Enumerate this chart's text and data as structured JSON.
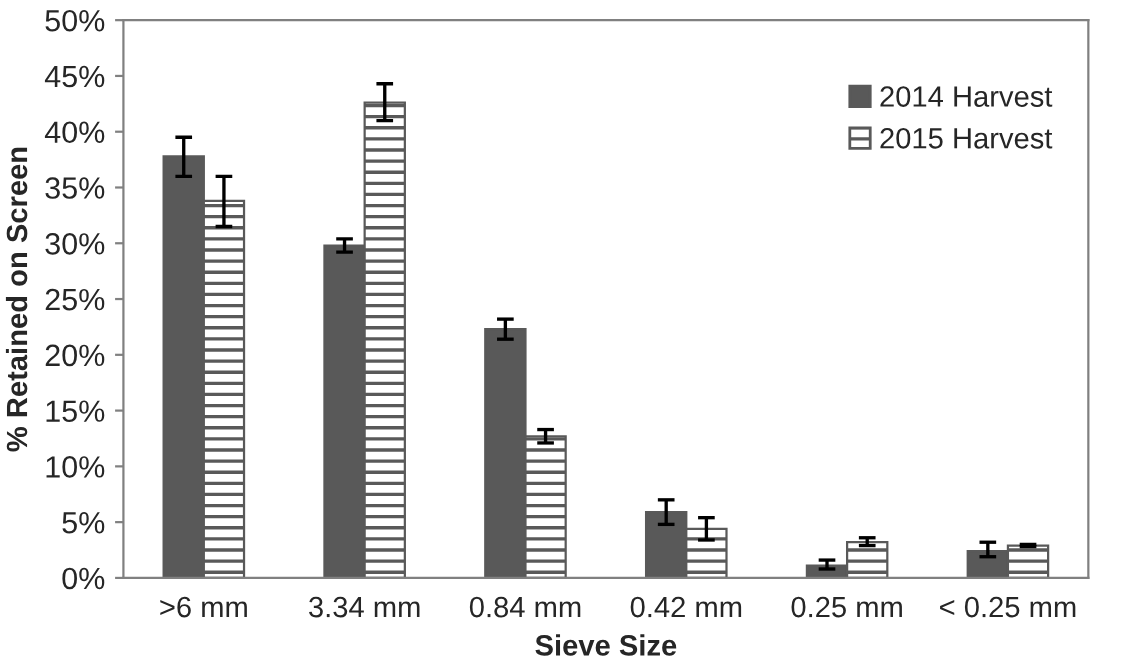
{
  "chart_data": {
    "type": "bar",
    "xlabel": "Sieve Size",
    "ylabel": "% Retained on Screen",
    "categories": [
      ">6 mm",
      "3.34 mm",
      "0.84 mm",
      "0.42 mm",
      "0.25 mm",
      "< 0.25 mm"
    ],
    "series": [
      {
        "name": "2014 Harvest",
        "color": "#595959",
        "values": [
          37.8,
          29.8,
          22.3,
          5.9,
          1.1,
          2.4
        ],
        "errors": [
          [
            36.0,
            39.5
          ],
          [
            29.2,
            30.4
          ],
          [
            21.4,
            23.2
          ],
          [
            4.8,
            7.0
          ],
          [
            0.8,
            1.6
          ],
          [
            1.9,
            3.2
          ]
        ]
      },
      {
        "name": "2015 Harvest",
        "color": "#595959",
        "values": [
          33.8,
          42.6,
          12.7,
          4.4,
          3.2,
          2.9
        ],
        "errors": [
          [
            31.5,
            36.0
          ],
          [
            41.0,
            44.3
          ],
          [
            12.1,
            13.3
          ],
          [
            3.4,
            5.4
          ],
          [
            2.9,
            3.6
          ],
          [
            2.8,
            3.0
          ]
        ]
      }
    ],
    "ylim": [
      0,
      50
    ],
    "yticks": [
      {
        "value": 0,
        "label": "0%"
      },
      {
        "value": 5,
        "label": "5%"
      },
      {
        "value": 10,
        "label": "10%"
      },
      {
        "value": 15,
        "label": "15%"
      },
      {
        "value": 20,
        "label": "20%"
      },
      {
        "value": 25,
        "label": "25%"
      },
      {
        "value": 30,
        "label": "30%"
      },
      {
        "value": 35,
        "label": "35%"
      },
      {
        "value": 40,
        "label": "40%"
      },
      {
        "value": 45,
        "label": "45%"
      },
      {
        "value": 50,
        "label": "50%"
      }
    ],
    "grid": false,
    "legend": "top right"
  }
}
